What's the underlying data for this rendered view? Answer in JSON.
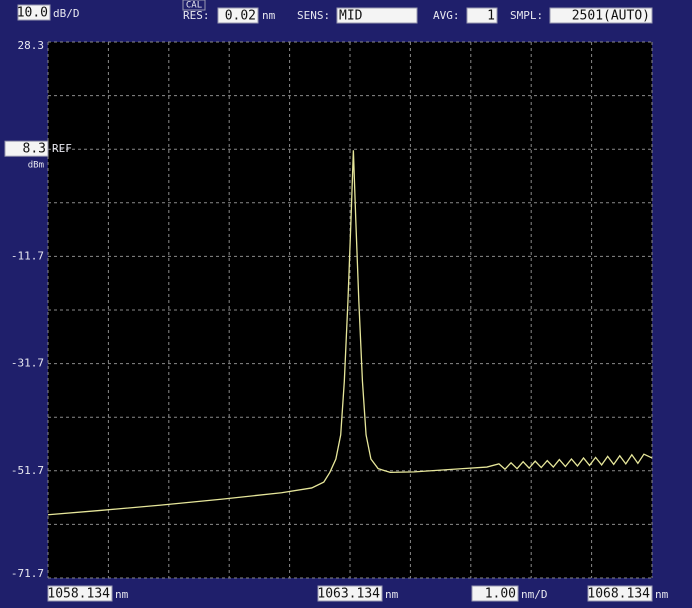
{
  "settings": {
    "cal": "CAL",
    "res_label": "RES:",
    "res": 0.02,
    "res_unit": "nm",
    "sens_label": "SENS:",
    "sens": "MID",
    "avg_label": "AVG:",
    "avg": 1,
    "smpl_label": "SMPL:",
    "smpl": "2501(AUTO)"
  },
  "chart_data": {
    "type": "line",
    "xlim": [
      1058.134,
      1068.134
    ],
    "xticks": [
      1058.134,
      1063.134,
      1068.134
    ],
    "x_unit": "nm",
    "x_per_div": {
      "value": 1,
      "label": "1.00"
    },
    "x_per_div_unit": "nm/D",
    "ylim": [
      -71.7,
      28.3
    ],
    "yticks": [
      28.3,
      -11.7,
      -31.7,
      -51.7,
      -71.7
    ],
    "y_per_div": {
      "value": 10,
      "label": "10.0"
    },
    "y_per_div_unit": "dB/D",
    "ref_level": 8.3,
    "ref_label": "REF",
    "ref_unit": "dBm",
    "grid": true,
    "series": [
      {
        "color": "#e6e69a",
        "x": [
          1058.134,
          1059.0,
          1060.0,
          1061.0,
          1062.0,
          1062.5,
          1062.7,
          1062.8,
          1062.9,
          1062.98,
          1063.04,
          1063.1,
          1063.15,
          1063.19,
          1063.23,
          1063.28,
          1063.34,
          1063.4,
          1063.48,
          1063.6,
          1063.8,
          1064.2,
          1064.6,
          1065.0,
          1065.4,
          1065.6,
          1065.7,
          1065.8,
          1065.9,
          1066.0,
          1066.1,
          1066.2,
          1066.3,
          1066.4,
          1066.5,
          1066.6,
          1066.7,
          1066.8,
          1066.9,
          1067.0,
          1067.1,
          1067.2,
          1067.3,
          1067.4,
          1067.5,
          1067.6,
          1067.7,
          1067.8,
          1067.9,
          1068.0,
          1068.134
        ],
        "values": [
          -59.9,
          -59.1,
          -58.1,
          -57.0,
          -55.8,
          -54.9,
          -53.8,
          -52.0,
          -49.5,
          -45,
          -35,
          -20,
          -5,
          8.1,
          -5,
          -20,
          -35,
          -45,
          -49.5,
          -51.3,
          -52.0,
          -51.9,
          -51.6,
          -51.3,
          -51.0,
          -50.4,
          -51.4,
          -50.2,
          -51.3,
          -50.0,
          -51.2,
          -49.9,
          -51.1,
          -49.8,
          -51.0,
          -49.6,
          -50.9,
          -49.5,
          -50.8,
          -49.3,
          -50.7,
          -49.2,
          -50.6,
          -49.0,
          -50.5,
          -48.9,
          -50.4,
          -48.7,
          -50.3,
          -48.6,
          -49.3
        ]
      }
    ]
  }
}
